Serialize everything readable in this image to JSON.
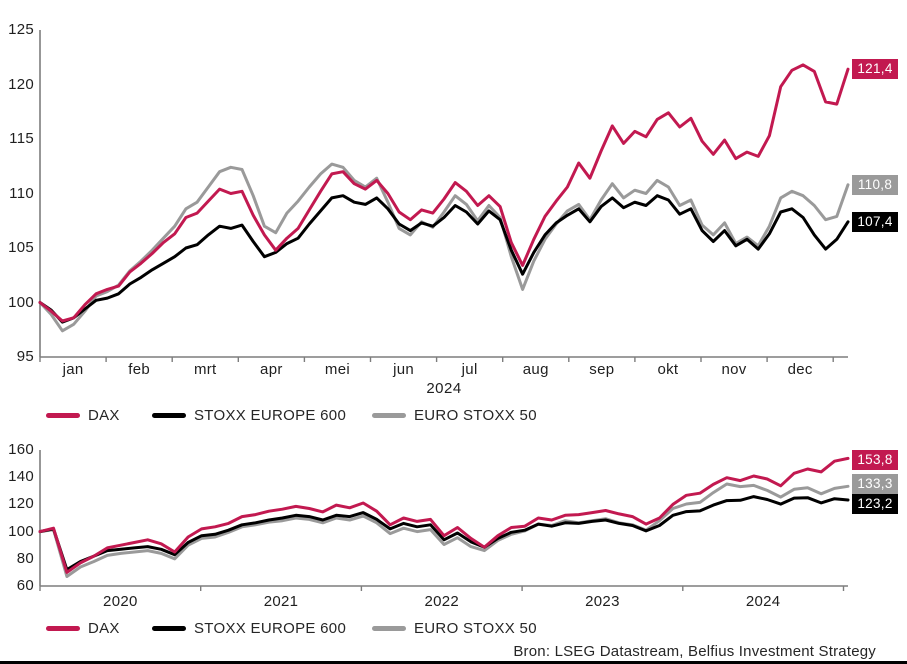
{
  "source": "Bron: LSEG Datastream, Belfius Investment Strategy",
  "colors": {
    "dax": "#c21950",
    "stoxx_europe_600": "#000000",
    "euro_stoxx_50": "#9a9a9a",
    "axis": "#7d7d7d",
    "text": "#262626",
    "background": "#ffffff",
    "bottom_border": "#000000"
  },
  "chart_data": [
    {
      "type": "line",
      "title": "",
      "xlabel": "2024",
      "ylabel": "",
      "ylim": [
        95,
        125
      ],
      "yticks": [
        95,
        100,
        105,
        110,
        115,
        120,
        125
      ],
      "x_tick_labels": [
        "jan",
        "feb",
        "mrt",
        "apr",
        "mei",
        "jun",
        "jul",
        "aug",
        "sep",
        "okt",
        "nov",
        "dec"
      ],
      "x_description": "Year 2024, indexed 100 at start of January, 6 samples per month",
      "grid": false,
      "legend_position": "below",
      "series": [
        {
          "name": "DAX",
          "color": "#c21950",
          "end_label": "121,4",
          "values": [
            100,
            99.2,
            98.3,
            98.6,
            99.8,
            100.8,
            101.2,
            101.5,
            102.8,
            103.6,
            104.5,
            105.5,
            106.3,
            107.8,
            108.2,
            109.3,
            110.4,
            110,
            110.2,
            108,
            106.2,
            104.8,
            105.9,
            106.8,
            108.5,
            110.2,
            111.8,
            112,
            110.9,
            110.4,
            111.2,
            110,
            108.3,
            107.6,
            108.5,
            108.2,
            109.5,
            111,
            110.2,
            108.9,
            109.8,
            108.8,
            105.5,
            103.4,
            105.8,
            107.9,
            109.3,
            110.6,
            112.8,
            111.4,
            113.9,
            116.2,
            114.6,
            115.7,
            115.2,
            116.8,
            117.4,
            116.1,
            116.9,
            114.8,
            113.6,
            114.9,
            113.2,
            113.8,
            113.4,
            115.3,
            119.8,
            121.3,
            121.8,
            121.2,
            118.4,
            118.2,
            121.4
          ]
        },
        {
          "name": "STOXX EUROPE 600",
          "color": "#000000",
          "end_label": "107,4",
          "values": [
            100,
            99.3,
            98.2,
            98.6,
            99.4,
            100.2,
            100.4,
            100.8,
            101.7,
            102.3,
            103,
            103.6,
            104.2,
            105,
            105.3,
            106.2,
            107,
            106.8,
            107.1,
            105.6,
            104.2,
            104.6,
            105.4,
            105.9,
            107.2,
            108.4,
            109.6,
            109.8,
            109.2,
            109,
            109.6,
            108.6,
            107.2,
            106.6,
            107.3,
            107,
            107.8,
            108.9,
            108.3,
            107.2,
            108.4,
            107.6,
            104.8,
            102.6,
            104.6,
            106.2,
            107.3,
            108,
            108.6,
            107.4,
            108.8,
            109.6,
            108.7,
            109.2,
            108.9,
            109.8,
            109.4,
            108.1,
            108.6,
            106.6,
            105.6,
            106.6,
            105.2,
            105.8,
            104.9,
            106.3,
            108.3,
            108.6,
            107.8,
            106.2,
            104.9,
            105.8,
            107.4
          ]
        },
        {
          "name": "EURO STOXX 50",
          "color": "#9a9a9a",
          "end_label": "110,8",
          "values": [
            100,
            98.9,
            97.4,
            98,
            99.2,
            100.6,
            101,
            101.6,
            102.9,
            103.8,
            104.8,
            105.9,
            107,
            108.6,
            109.2,
            110.6,
            112,
            112.4,
            112.2,
            109.8,
            107,
            106.4,
            108.2,
            109.3,
            110.6,
            111.8,
            112.7,
            112.4,
            111.2,
            110.6,
            111.4,
            109.2,
            106.8,
            106.2,
            107.4,
            106.9,
            108.3,
            109.8,
            109,
            107.5,
            108.9,
            107.8,
            104.2,
            101.2,
            103.8,
            105.8,
            107.2,
            108.4,
            109,
            107.6,
            109.4,
            110.9,
            109.6,
            110.3,
            110,
            111.2,
            110.6,
            108.9,
            109.4,
            107.1,
            106.2,
            107.3,
            105.4,
            106,
            105.2,
            107,
            109.6,
            110.2,
            109.8,
            108.9,
            107.6,
            107.9,
            110.8
          ]
        }
      ]
    },
    {
      "type": "line",
      "title": "",
      "xlabel": "",
      "ylabel": "",
      "ylim": [
        60,
        160
      ],
      "yticks": [
        60,
        80,
        100,
        120,
        140,
        160
      ],
      "x_tick_labels": [
        "2020",
        "2021",
        "2022",
        "2023",
        "2024"
      ],
      "x_description": "January 2020 - December 2024, indexed 100 at start, monthly samples",
      "grid": false,
      "legend_position": "below",
      "series": [
        {
          "name": "DAX",
          "color": "#c21950",
          "end_label": "153,8",
          "values": [
            100,
            102.5,
            70,
            77,
            82,
            88,
            90,
            92,
            94,
            91,
            85,
            96,
            102,
            103.5,
            106,
            111,
            112.5,
            115,
            116.5,
            118.5,
            117,
            114.5,
            119.5,
            117.5,
            121,
            115,
            105,
            110,
            107.5,
            109,
            97,
            103,
            95,
            88.5,
            97,
            103,
            104,
            110,
            108.5,
            112,
            112.5,
            114,
            115.5,
            113,
            111,
            105.5,
            110,
            120,
            126.7,
            128.2,
            134.7,
            139.6,
            137.5,
            140.9,
            138.7,
            133.7,
            142.9,
            146,
            143.9,
            151.8,
            153.8
          ]
        },
        {
          "name": "STOXX EUROPE 600",
          "color": "#000000",
          "end_label": "123,2",
          "values": [
            100,
            102,
            72,
            78,
            82,
            86,
            87,
            88,
            89,
            87,
            83,
            92,
            97,
            98,
            101,
            105,
            106.5,
            108.5,
            110,
            112,
            111,
            108.5,
            112,
            111,
            114,
            109,
            102,
            106,
            103.5,
            105,
            94,
            99,
            92.5,
            88.5,
            95,
            99.5,
            101,
            105.5,
            104,
            106.5,
            106,
            107.5,
            108.5,
            106,
            104.5,
            100.5,
            104.5,
            112,
            114.7,
            115.2,
            119.5,
            122.8,
            123,
            125.7,
            123.6,
            120.2,
            124.6,
            124.9,
            121.1,
            124.2,
            123.2
          ]
        },
        {
          "name": "EURO STOXX 50",
          "color": "#9a9a9a",
          "end_label": "133,3",
          "values": [
            100,
            101.5,
            67,
            74,
            78,
            82.5,
            84,
            85,
            86,
            84,
            80,
            90,
            95,
            96,
            99.5,
            103.5,
            105,
            107,
            108,
            110,
            109,
            106.5,
            110,
            108.5,
            111.5,
            106.5,
            98.5,
            102.5,
            100,
            101.5,
            90.5,
            95.5,
            89,
            86,
            93.5,
            98,
            100.5,
            105.5,
            104.5,
            108,
            106.5,
            108,
            109.5,
            106.5,
            105,
            101,
            108,
            117,
            120.3,
            121.5,
            128.7,
            135,
            133.1,
            134,
            130.3,
            125.4,
            131.1,
            132.3,
            127.8,
            131.8,
            133.3
          ]
        }
      ]
    }
  ]
}
